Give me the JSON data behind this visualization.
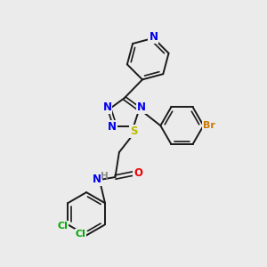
{
  "background_color": "#ebebeb",
  "bond_color": "#1a1a1a",
  "atom_colors": {
    "N": "#0000ee",
    "S": "#bbbb00",
    "O": "#ee0000",
    "Br": "#cc7700",
    "Cl": "#00aa00",
    "H": "#888888",
    "C": "#1a1a1a"
  },
  "lw_single": 1.4,
  "lw_double": 1.2,
  "font_size": 8.5
}
